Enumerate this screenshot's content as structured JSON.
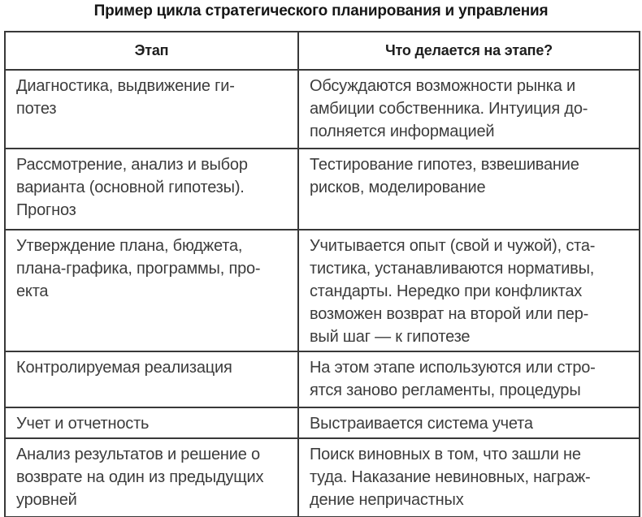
{
  "title": "Пример цикла стратегического планирования и управления",
  "table": {
    "headers": {
      "stage": "Этап",
      "action": "Что делается на этапе?"
    },
    "rows": [
      {
        "stage": "Диагностика, выдвижение ги-\nпотез",
        "action": "Обсуждаются возможности рынка и\nамбиции собственника. Интуиция до-\nполняется информацией"
      },
      {
        "stage": "Рассмотрение, анализ и выбор\nварианта (основной гипотезы).\nПрогноз",
        "action": "Тестирование гипотез, взвешивание\nрисков, моделирование"
      },
      {
        "stage": "Утверждение плана, бюджета,\nплана-графика, программы, про-\nекта",
        "action": "Учитывается опыт (свой и чужой), ста-\nтистика, устанавливаются нормативы,\nстандарты. Нередко при конфликтах\nвозможен возврат на второй или пер-\nвый шаг — к гипотезе"
      },
      {
        "stage": "Контролируемая реализация",
        "action": "На этом этапе используются или стро-\nятся заново регламенты, процедуры"
      },
      {
        "stage": "Учет и отчетность",
        "action": "Выстраивается система учета"
      },
      {
        "stage": "Анализ результатов и решение о\nвозврате на один из предыдущих\nуровней",
        "action": "Поиск виновных в том, что зашли не\nтуда. Наказание невиновных, награж-\nдение непричастных"
      }
    ]
  },
  "colors": {
    "background": "#ffffff",
    "border": "#383838",
    "body_text": "#3c3c3c",
    "title_text": "#161616"
  }
}
